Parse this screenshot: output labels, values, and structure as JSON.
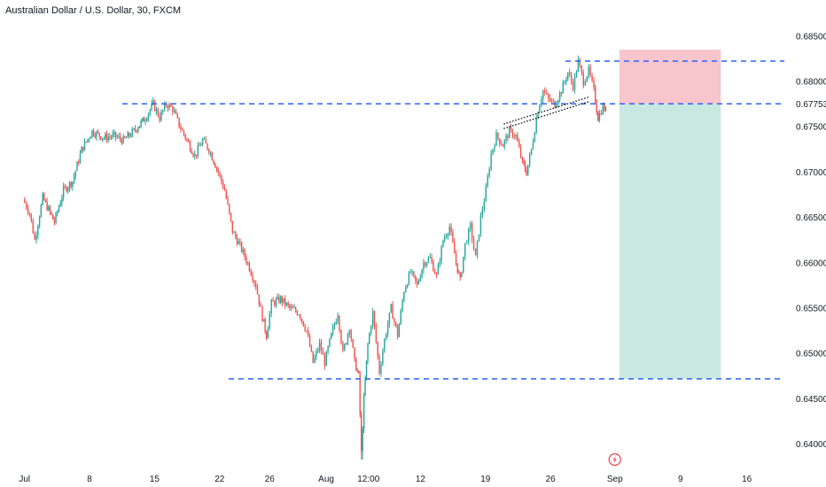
{
  "header": {
    "title": "Australian Dollar / U.S. Dollar, 30, FXCM"
  },
  "chart_data": {
    "type": "candlestick",
    "title": "Australian Dollar / U.S. Dollar, 30, FXCM",
    "ylim": [
      0.638,
      0.6855
    ],
    "y_ticks": [
      "0.68500",
      "0.68000",
      "0.67753",
      "0.67500",
      "0.67000",
      "0.66500",
      "0.66000",
      "0.65500",
      "0.65000",
      "0.64500",
      "0.64000"
    ],
    "x_ticks": [
      {
        "label": "Jul",
        "pos": 0.05
      },
      {
        "label": "8",
        "pos": 5.05
      },
      {
        "label": "15",
        "pos": 10.05
      },
      {
        "label": "22",
        "pos": 15.05
      },
      {
        "label": "26",
        "pos": 18.9
      },
      {
        "label": "Aug",
        "pos": 23.25
      },
      {
        "label": "12:00",
        "pos": 26.5
      },
      {
        "label": "12",
        "pos": 30.5
      },
      {
        "label": "19",
        "pos": 35.5
      },
      {
        "label": "26",
        "pos": 40.5
      },
      {
        "label": "Sep",
        "pos": 45.45
      },
      {
        "label": "9",
        "pos": 50.5
      },
      {
        "label": "16",
        "pos": 55.6
      }
    ],
    "price_path": [
      [
        0,
        0.667
      ],
      [
        0.5,
        0.6655
      ],
      [
        0.9,
        0.6625
      ],
      [
        1.5,
        0.6672
      ],
      [
        2.4,
        0.6645
      ],
      [
        3.1,
        0.668
      ],
      [
        3.8,
        0.669
      ],
      [
        4.5,
        0.6725
      ],
      [
        5.3,
        0.6745
      ],
      [
        6.2,
        0.6738
      ],
      [
        7.0,
        0.674
      ],
      [
        7.7,
        0.6735
      ],
      [
        8.5,
        0.6745
      ],
      [
        9.4,
        0.676
      ],
      [
        10.0,
        0.6775
      ],
      [
        10.5,
        0.676
      ],
      [
        11.0,
        0.6775
      ],
      [
        11.5,
        0.677
      ],
      [
        12.0,
        0.6752
      ],
      [
        12.6,
        0.6735
      ],
      [
        13.2,
        0.6718
      ],
      [
        13.8,
        0.6735
      ],
      [
        14.3,
        0.6725
      ],
      [
        15.0,
        0.67
      ],
      [
        15.5,
        0.668
      ],
      [
        16.1,
        0.6635
      ],
      [
        16.8,
        0.6615
      ],
      [
        17.4,
        0.6595
      ],
      [
        17.9,
        0.6575
      ],
      [
        18.4,
        0.654
      ],
      [
        18.7,
        0.652
      ],
      [
        19.1,
        0.6555
      ],
      [
        19.8,
        0.656
      ],
      [
        20.5,
        0.655
      ],
      [
        21.2,
        0.6545
      ],
      [
        21.8,
        0.6525
      ],
      [
        22.3,
        0.649
      ],
      [
        22.8,
        0.651
      ],
      [
        23.2,
        0.649
      ],
      [
        23.7,
        0.652
      ],
      [
        24.2,
        0.6545
      ],
      [
        24.6,
        0.65
      ],
      [
        25.1,
        0.653
      ],
      [
        25.5,
        0.649
      ],
      [
        25.8,
        0.6475
      ],
      [
        26.0,
        0.639
      ],
      [
        26.2,
        0.645
      ],
      [
        26.5,
        0.651
      ],
      [
        26.9,
        0.6545
      ],
      [
        27.4,
        0.648
      ],
      [
        27.8,
        0.6515
      ],
      [
        28.3,
        0.655
      ],
      [
        28.8,
        0.652
      ],
      [
        29.3,
        0.657
      ],
      [
        29.8,
        0.659
      ],
      [
        30.3,
        0.6575
      ],
      [
        30.8,
        0.66
      ],
      [
        31.3,
        0.6605
      ],
      [
        31.8,
        0.6585
      ],
      [
        32.3,
        0.6625
      ],
      [
        32.8,
        0.664
      ],
      [
        33.3,
        0.66
      ],
      [
        33.6,
        0.658
      ],
      [
        34.0,
        0.662
      ],
      [
        34.4,
        0.664
      ],
      [
        34.8,
        0.6605
      ],
      [
        35.2,
        0.665
      ],
      [
        35.6,
        0.668
      ],
      [
        36.0,
        0.672
      ],
      [
        36.4,
        0.674
      ],
      [
        36.9,
        0.673
      ],
      [
        37.4,
        0.6745
      ],
      [
        37.9,
        0.674
      ],
      [
        38.4,
        0.671
      ],
      [
        38.7,
        0.67
      ],
      [
        39.1,
        0.6725
      ],
      [
        39.6,
        0.677
      ],
      [
        40.0,
        0.679
      ],
      [
        40.4,
        0.678
      ],
      [
        40.9,
        0.6775
      ],
      [
        41.4,
        0.679
      ],
      [
        41.9,
        0.681
      ],
      [
        42.3,
        0.6795
      ],
      [
        42.7,
        0.6822
      ],
      [
        43.1,
        0.68
      ],
      [
        43.5,
        0.6812
      ],
      [
        43.9,
        0.679
      ],
      [
        44.2,
        0.676
      ],
      [
        44.6,
        0.6772
      ],
      [
        44.8,
        0.6768
      ]
    ],
    "levels": [
      {
        "name": "top",
        "value": 0.68225
      },
      {
        "name": "entry",
        "value": 0.67753
      },
      {
        "name": "target",
        "value": 0.6472
      }
    ],
    "position": {
      "type": "short",
      "entry": 0.67753,
      "stop": 0.6835,
      "target": 0.6472,
      "start_pos": 45.8,
      "end_pos": 53.6,
      "stop_color": "#f7c5cb",
      "target_color": "#c9e8e1"
    },
    "trendlines": [
      {
        "from": [
          36.9,
          0.6753
        ],
        "to": [
          43.5,
          0.6783
        ]
      },
      {
        "from": [
          36.9,
          0.6748
        ],
        "to": [
          43.5,
          0.6778
        ]
      }
    ],
    "colors": {
      "up": "#26a69a",
      "down": "#ef5350",
      "level": "#2962ff",
      "trendline": "#131722",
      "text": "#131722"
    },
    "event_icon": {
      "name": "lightning-icon",
      "pos": 45.45,
      "color": "#e0434b"
    }
  }
}
